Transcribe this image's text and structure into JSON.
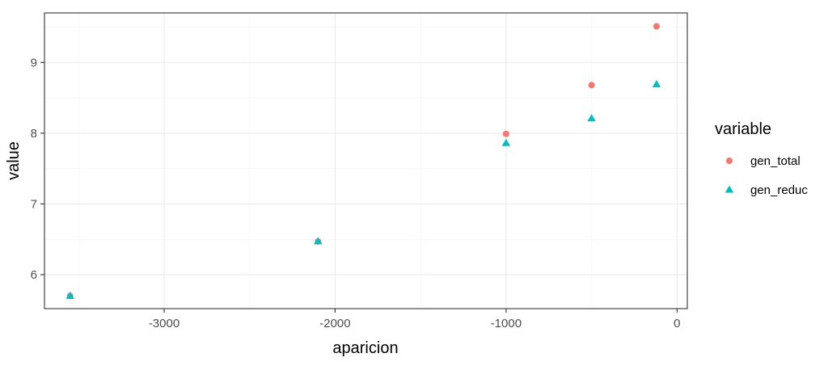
{
  "chart_data": {
    "type": "scatter",
    "xlabel": "aparicion",
    "ylabel": "value",
    "xlim": [
      -3700,
      60
    ],
    "ylim": [
      5.52,
      9.7
    ],
    "x_ticks": [
      -3000,
      -2000,
      -1000,
      0
    ],
    "x_tick_labels": [
      "-3000",
      "-2000",
      "-1000",
      "0"
    ],
    "y_ticks": [
      6,
      7,
      8,
      9
    ],
    "y_tick_labels": [
      "6",
      "7",
      "8",
      "9"
    ],
    "grid": true,
    "theme": "bw",
    "legend": {
      "title": "variable",
      "position": "right"
    },
    "series": [
      {
        "name": "gen_total",
        "marker": "circle",
        "color": "#F8766D",
        "points": [
          {
            "x": -3550,
            "y": 5.7
          },
          {
            "x": -2100,
            "y": 6.47
          },
          {
            "x": -1000,
            "y": 7.99
          },
          {
            "x": -500,
            "y": 8.68
          },
          {
            "x": -120,
            "y": 9.51
          }
        ]
      },
      {
        "name": "gen_reduc",
        "marker": "triangle",
        "color": "#00BFC4",
        "points": [
          {
            "x": -3550,
            "y": 5.7
          },
          {
            "x": -2100,
            "y": 6.47
          },
          {
            "x": -1000,
            "y": 7.86
          },
          {
            "x": -500,
            "y": 8.21
          },
          {
            "x": -120,
            "y": 8.69
          }
        ]
      }
    ]
  }
}
